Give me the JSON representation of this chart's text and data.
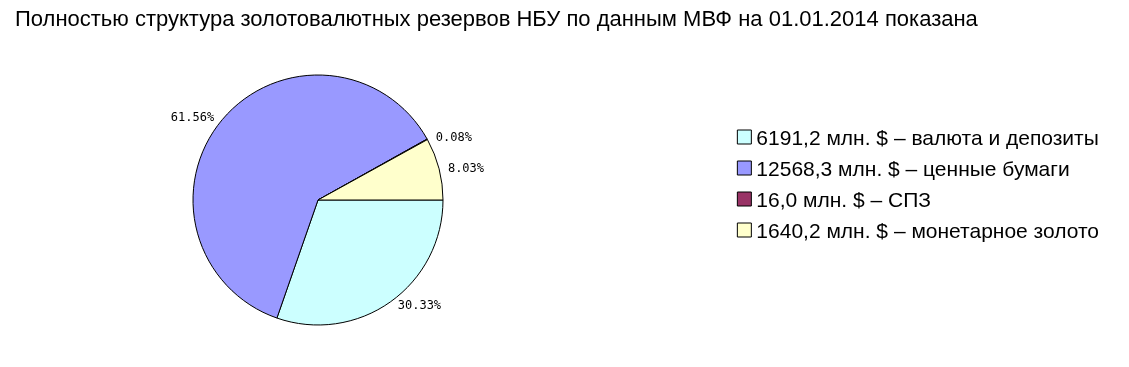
{
  "chart_data": {
    "type": "pie",
    "title": "Полностью структура золотовалютных резервов НБУ по данным МВФ на 01.01.2014 показана",
    "categories": [
      "6191,2 млн. $ – валюта и депозиты",
      "12568,3 млн. $ – ценные бумаги",
      "16,0 млн. $ – СПЗ",
      "1640,2 млн. $ – монетарное золото"
    ],
    "values": [
      30.33,
      61.56,
      0.08,
      8.03
    ],
    "colors": [
      "#ccffff",
      "#9999ff",
      "#993366",
      "#ffffcc"
    ],
    "value_labels": [
      "30.33%",
      "61.56%",
      "0.08%",
      "8.03%"
    ],
    "legend": "right"
  }
}
